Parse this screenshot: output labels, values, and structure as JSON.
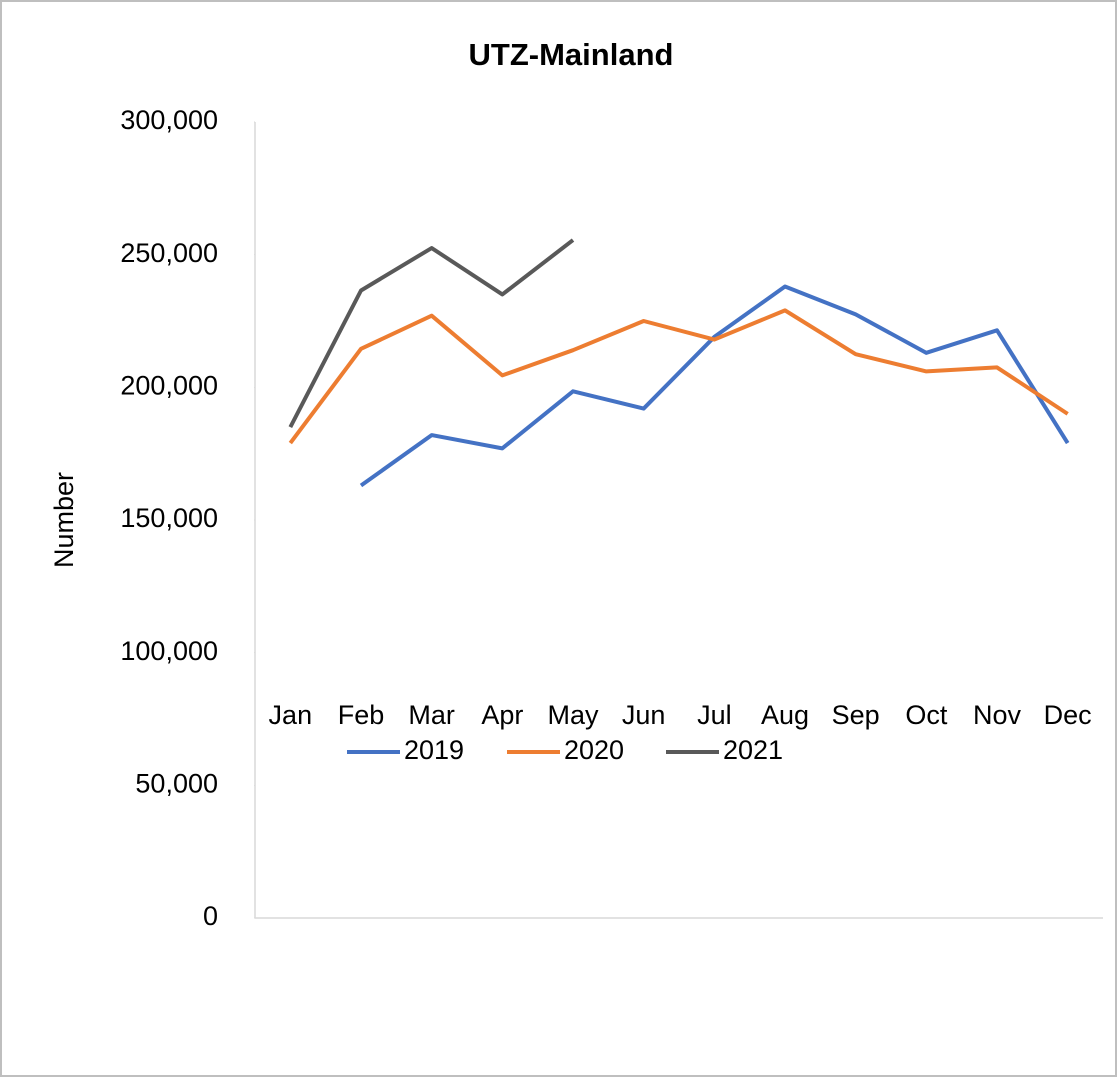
{
  "chart_data": {
    "type": "line",
    "title": "UTZ-Mainland",
    "y_label": "Number",
    "categories": [
      "Jan",
      "Feb",
      "Mar",
      "Apr",
      "May",
      "Jun",
      "Jul",
      "Aug",
      "Sep",
      "Oct",
      "Nov",
      "Dec"
    ],
    "series": [
      {
        "name": "2019",
        "color": "#4472c4",
        "values": [
          null,
          163000,
          182000,
          177000,
          198500,
          192000,
          219000,
          238000,
          227500,
          213000,
          221500,
          179000
        ]
      },
      {
        "name": "2020",
        "color": "#ed7d31",
        "values": [
          179000,
          214500,
          227000,
          204500,
          214000,
          225000,
          218000,
          229000,
          212500,
          206000,
          207500,
          190000
        ]
      },
      {
        "name": "2021",
        "color": "#595959",
        "values": [
          185000,
          236500,
          252500,
          235000,
          255500,
          null,
          null,
          null,
          null,
          null,
          null,
          null
        ]
      }
    ],
    "ylim": [
      0,
      300000
    ],
    "yticks": [
      0,
      {
        "value": 50000,
        "label": "50,000"
      },
      {
        "value": 100000,
        "label": "100,000"
      },
      {
        "value": 150000,
        "label": "150,000"
      },
      {
        "value": 200000,
        "label": "200,000"
      },
      {
        "value": 250000,
        "label": "250,000"
      },
      {
        "value": 300000,
        "label": "300,000"
      }
    ],
    "legend": "bottom"
  }
}
